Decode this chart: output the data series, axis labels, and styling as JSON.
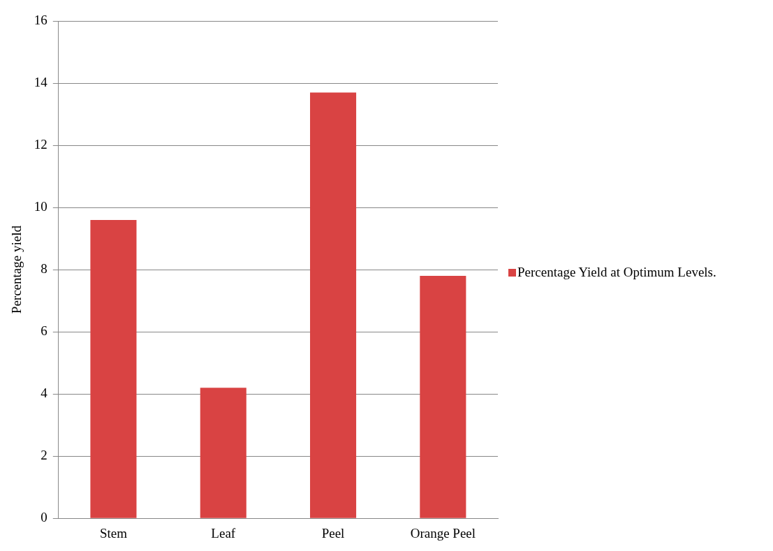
{
  "chart_data": {
    "type": "bar",
    "ylabel": "Percentage yield",
    "categories": [
      "Stem",
      "Leaf",
      "Peel",
      "Orange Peel"
    ],
    "series": [
      {
        "name": "Percentage Yield at Optimum Levels.",
        "color": "#d94343",
        "values": [
          9.6,
          4.2,
          13.7,
          7.8
        ]
      }
    ],
    "ylim": [
      0,
      16
    ],
    "yticks": [
      0,
      2,
      4,
      6,
      8,
      10,
      12,
      14,
      16
    ],
    "grid": "y",
    "legend": "right"
  }
}
